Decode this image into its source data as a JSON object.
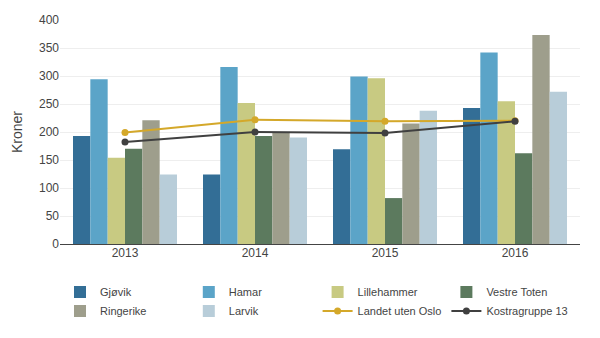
{
  "chart_data": {
    "type": "bar",
    "categories": [
      "2013",
      "2014",
      "2015",
      "2016"
    ],
    "ylabel": "Kroner",
    "ylim": [
      0,
      400
    ],
    "yticks": [
      0,
      50,
      100,
      150,
      200,
      250,
      300,
      350,
      400
    ],
    "grid": true,
    "legend": "bottom",
    "series": [
      {
        "name": "Gjøvik",
        "color": "#336E96",
        "values": [
          193,
          124,
          169,
          243
        ]
      },
      {
        "name": "Hamar",
        "color": "#5BA4C8",
        "values": [
          294,
          316,
          299,
          342
        ]
      },
      {
        "name": "Lillehammer",
        "color": "#C8CA82",
        "values": [
          154,
          252,
          296,
          255
        ]
      },
      {
        "name": "Vestre Toten",
        "color": "#5C7A5E",
        "values": [
          170,
          193,
          82,
          162
        ]
      },
      {
        "name": "Ringerike",
        "color": "#9E9E8C",
        "values": [
          221,
          199,
          215,
          373
        ]
      },
      {
        "name": "Larvik",
        "color": "#B8CDD9",
        "values": [
          124,
          190,
          238,
          272
        ]
      },
      {
        "name": "Landet uten Oslo",
        "type": "line",
        "marker": "circle",
        "color": "#D4A82A",
        "values": [
          199,
          222,
          219,
          220
        ]
      },
      {
        "name": "Kostragruppe 13",
        "type": "line",
        "marker": "circle",
        "color": "#404040",
        "values": [
          182,
          200,
          198,
          219
        ]
      }
    ]
  }
}
